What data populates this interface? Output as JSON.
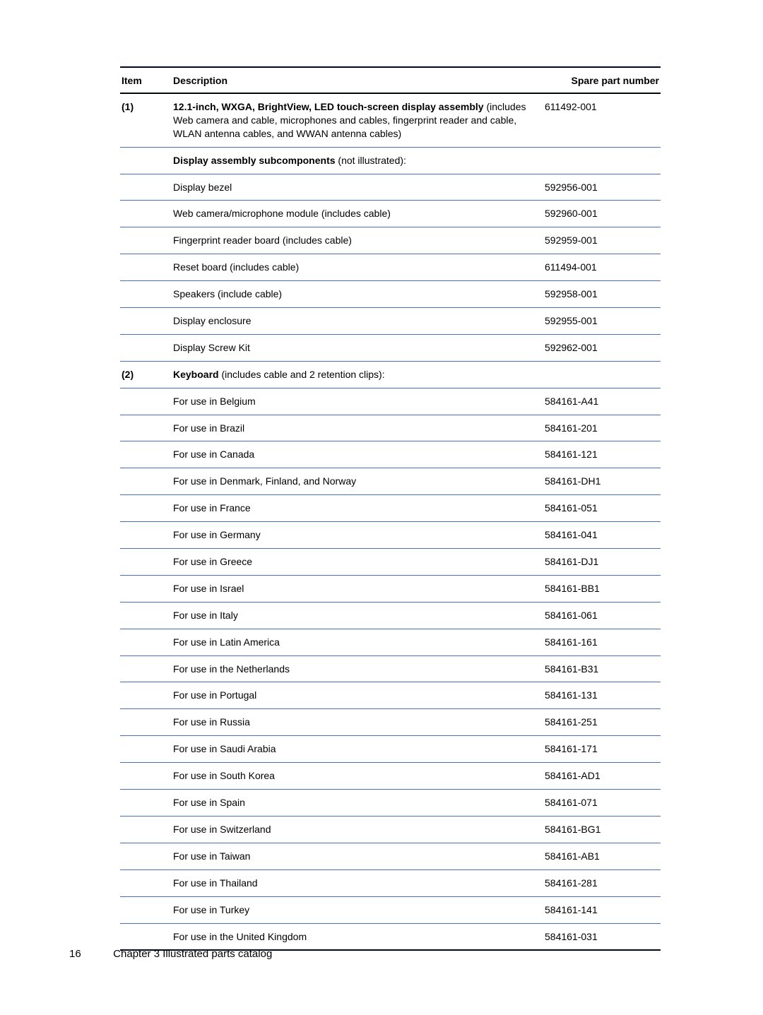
{
  "columns": {
    "item": "Item",
    "description": "Description",
    "part": "Spare part number"
  },
  "rows": [
    {
      "item": "(1)",
      "desc_html": "<span class=\"b\">12.1-inch, WXGA, BrightView, LED touch-screen display assembly</span> (includes Web camera and cable, microphones and cables, fingerprint reader and cable, WLAN antenna cables, and WWAN antenna cables)",
      "part": "611492-001"
    },
    {
      "item": "",
      "desc_html": "<span class=\"b\">Display assembly subcomponents</span> (not illustrated):",
      "part": ""
    },
    {
      "item": "",
      "desc_html": "Display bezel",
      "part": "592956-001"
    },
    {
      "item": "",
      "desc_html": "Web camera/microphone module (includes cable)",
      "part": "592960-001"
    },
    {
      "item": "",
      "desc_html": "Fingerprint reader board (includes cable)",
      "part": "592959-001"
    },
    {
      "item": "",
      "desc_html": "Reset board (includes cable)",
      "part": "611494-001"
    },
    {
      "item": "",
      "desc_html": "Speakers (include cable)",
      "part": "592958-001"
    },
    {
      "item": "",
      "desc_html": "Display enclosure",
      "part": "592955-001"
    },
    {
      "item": "",
      "desc_html": "Display Screw Kit",
      "part": "592962-001"
    },
    {
      "item": "(2)",
      "desc_html": "<span class=\"b\">Keyboard</span> (includes cable and 2 retention clips):",
      "part": ""
    },
    {
      "item": "",
      "desc_html": "For use in Belgium",
      "part": "584161-A41"
    },
    {
      "item": "",
      "desc_html": "For use in Brazil",
      "part": "584161-201"
    },
    {
      "item": "",
      "desc_html": "For use in Canada",
      "part": "584161-121"
    },
    {
      "item": "",
      "desc_html": "For use in Denmark, Finland, and Norway",
      "part": "584161-DH1"
    },
    {
      "item": "",
      "desc_html": "For use in France",
      "part": "584161-051"
    },
    {
      "item": "",
      "desc_html": "For use in Germany",
      "part": "584161-041"
    },
    {
      "item": "",
      "desc_html": "For use in Greece",
      "part": "584161-DJ1"
    },
    {
      "item": "",
      "desc_html": "For use in Israel",
      "part": "584161-BB1"
    },
    {
      "item": "",
      "desc_html": "For use in Italy",
      "part": "584161-061"
    },
    {
      "item": "",
      "desc_html": "For use in Latin America",
      "part": "584161-161"
    },
    {
      "item": "",
      "desc_html": "For use in the Netherlands",
      "part": "584161-B31"
    },
    {
      "item": "",
      "desc_html": "For use in Portugal",
      "part": "584161-131"
    },
    {
      "item": "",
      "desc_html": "For use in Russia",
      "part": "584161-251"
    },
    {
      "item": "",
      "desc_html": "For use in Saudi Arabia",
      "part": "584161-171"
    },
    {
      "item": "",
      "desc_html": "For use in South Korea",
      "part": "584161-AD1"
    },
    {
      "item": "",
      "desc_html": "For use in Spain",
      "part": "584161-071"
    },
    {
      "item": "",
      "desc_html": "For use in Switzerland",
      "part": "584161-BG1"
    },
    {
      "item": "",
      "desc_html": "For use in Taiwan",
      "part": "584161-AB1"
    },
    {
      "item": "",
      "desc_html": "For use in Thailand",
      "part": "584161-281"
    },
    {
      "item": "",
      "desc_html": "For use in Turkey",
      "part": "584161-141"
    },
    {
      "item": "",
      "desc_html": "For use in the United Kingdom",
      "part": "584161-031"
    }
  ],
  "footer": {
    "page": "16",
    "chapter": "Chapter 3   Illustrated parts catalog"
  }
}
